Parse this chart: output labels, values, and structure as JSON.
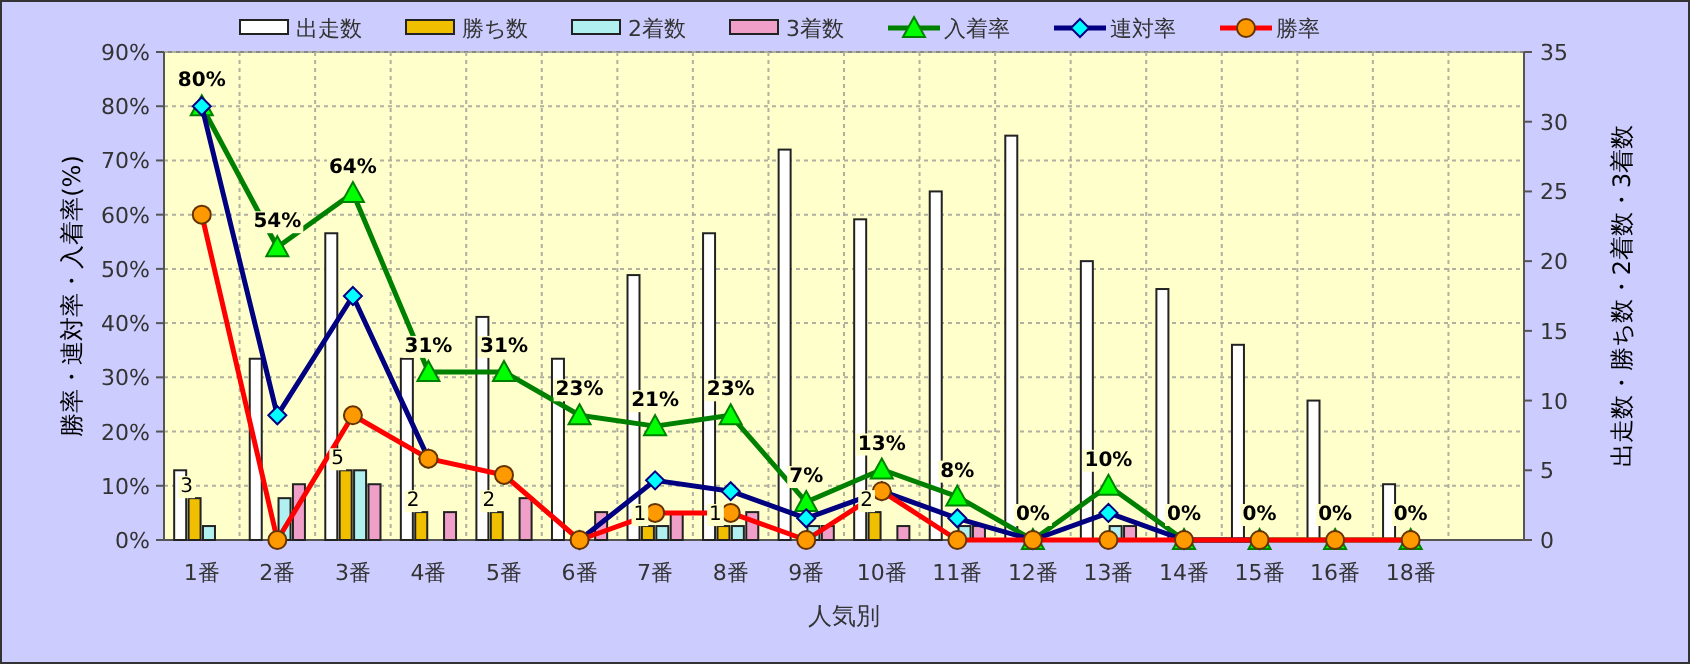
{
  "chart_data": {
    "type": "bar",
    "xlabel": "人気別",
    "ylabel": "勝率・連対率・入着率(%)",
    "y2label": "出走数・勝ち数・2着数・3着数",
    "categories": [
      "1番",
      "2番",
      "3番",
      "4番",
      "5番",
      "6番",
      "7番",
      "8番",
      "9番",
      "10番",
      "11番",
      "12番",
      "13番",
      "14番",
      "15番",
      "16番",
      "18番",
      null
    ],
    "ylim": [
      0,
      90
    ],
    "yticks": [
      {
        "value": 0,
        "label": "0%"
      },
      {
        "value": 10,
        "label": "10%"
      },
      {
        "value": 20,
        "label": "20%"
      },
      {
        "value": 30,
        "label": "30%"
      },
      {
        "value": 40,
        "label": "40%"
      },
      {
        "value": 50,
        "label": "50%"
      },
      {
        "value": 60,
        "label": "60%"
      },
      {
        "value": 70,
        "label": "70%"
      },
      {
        "value": 80,
        "label": "80%"
      },
      {
        "value": 90,
        "label": "90%"
      }
    ],
    "y2lim": [
      0,
      35
    ],
    "y2ticks": [
      0,
      5,
      10,
      15,
      20,
      25,
      30,
      35
    ],
    "grid": true,
    "legend": "top",
    "series": [
      {
        "name": "出走数",
        "axis": "y2",
        "color": "#ffffff",
        "values": [
          5,
          13,
          22,
          13,
          16,
          13,
          19,
          22,
          28,
          23,
          25,
          29,
          20,
          18,
          14,
          10,
          4,
          null
        ]
      },
      {
        "name": "勝ち数",
        "axis": "y2",
        "color": "#f0c000",
        "values": [
          3,
          0,
          5,
          2,
          2,
          0,
          1,
          1,
          0,
          2,
          0,
          0,
          0,
          0,
          0,
          0,
          0,
          null
        ],
        "value_labels": [
          "3",
          null,
          "5",
          "2",
          "2",
          null,
          "1",
          "1",
          null,
          "2",
          null,
          null,
          null,
          null,
          null,
          null,
          null,
          null
        ]
      },
      {
        "name": "2着数",
        "axis": "y2",
        "color": "#b0f0f0",
        "values": [
          1,
          3,
          5,
          0,
          0,
          0,
          1,
          1,
          1,
          0,
          1,
          0,
          1,
          0,
          0,
          0,
          0,
          null
        ]
      },
      {
        "name": "3着数",
        "axis": "y2",
        "color": "#f0a0c8",
        "values": [
          0,
          4,
          4,
          2,
          3,
          2,
          2,
          2,
          1,
          1,
          1,
          0,
          1,
          0,
          0,
          0,
          0,
          null
        ]
      },
      {
        "name": "入着率",
        "type": "line",
        "axis": "y",
        "color": "#008000",
        "marker": "triangle",
        "values": [
          80,
          54,
          64,
          31,
          31,
          23,
          21,
          23,
          7,
          13,
          8,
          0,
          10,
          0,
          0,
          0,
          0,
          null
        ],
        "value_labels": [
          "80%",
          "54%",
          "64%",
          "31%",
          "31%",
          "23%",
          "21%",
          "23%",
          "7%",
          "13%",
          "8%",
          "0%",
          "10%",
          "0%",
          "0%",
          "0%",
          "0%",
          null
        ]
      },
      {
        "name": "連対率",
        "type": "line",
        "axis": "y",
        "color": "#000080",
        "marker": "diamond",
        "values": [
          80,
          23,
          45,
          15,
          null,
          0,
          11,
          9,
          4,
          9,
          4,
          0,
          5,
          0,
          0,
          null,
          null,
          null
        ]
      },
      {
        "name": "勝率",
        "type": "line",
        "axis": "y",
        "color": "#ff0000",
        "marker": "circle",
        "values": [
          60,
          0,
          23,
          15,
          12,
          0,
          5,
          5,
          0,
          9,
          0,
          0,
          0,
          0,
          0,
          0,
          0,
          null
        ]
      }
    ]
  }
}
